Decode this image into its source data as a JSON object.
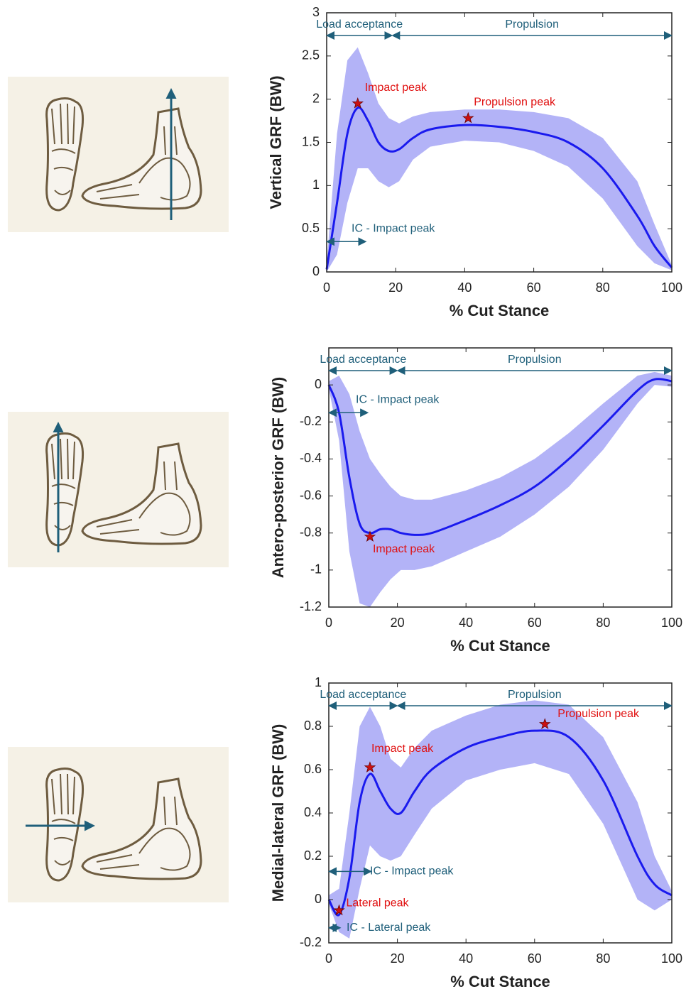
{
  "chart_data": [
    {
      "type": "line",
      "ylabel": "Vertical GRF (BW)",
      "xlabel": "% Cut Stance",
      "x": [
        0,
        3,
        6,
        9,
        12,
        15,
        18,
        21,
        25,
        30,
        40,
        50,
        60,
        70,
        80,
        90,
        95,
        100
      ],
      "values": [
        0.03,
        0.8,
        1.6,
        1.9,
        1.75,
        1.5,
        1.4,
        1.42,
        1.55,
        1.65,
        1.7,
        1.68,
        1.62,
        1.5,
        1.2,
        0.65,
        0.3,
        0.05
      ],
      "upper": [
        0.1,
        1.6,
        2.45,
        2.6,
        2.3,
        1.95,
        1.78,
        1.72,
        1.8,
        1.85,
        1.88,
        1.88,
        1.85,
        1.78,
        1.55,
        1.05,
        0.55,
        0.08
      ],
      "lower": [
        0,
        0.2,
        0.8,
        1.2,
        1.2,
        1.05,
        0.98,
        1.05,
        1.3,
        1.45,
        1.52,
        1.5,
        1.4,
        1.22,
        0.85,
        0.3,
        0.1,
        0.02
      ],
      "color": "#1a1aee",
      "band_color": "#b3b3f7",
      "xlim": [
        0,
        100
      ],
      "xticks": [
        0,
        20,
        40,
        60,
        80,
        100
      ],
      "ylim": [
        0,
        3
      ],
      "yticks": [
        0,
        0.5,
        1,
        1.5,
        2,
        2.5,
        3
      ],
      "phases": [
        {
          "label": "Load acceptance",
          "x": [
            0,
            19
          ]
        },
        {
          "label": "Propulsion",
          "x": [
            19,
            100
          ]
        }
      ],
      "spans": [
        {
          "label": "IC - Impact peak",
          "x": [
            0,
            11
          ]
        }
      ],
      "peaks": [
        {
          "label": "Impact peak",
          "x": 9,
          "y": 1.95
        },
        {
          "label": "Propulsion peak",
          "x": 41,
          "y": 1.78
        }
      ]
    },
    {
      "type": "line",
      "ylabel": "Antero-posterior GRF (BW)",
      "xlabel": "% Cut Stance",
      "x": [
        0,
        3,
        6,
        9,
        12,
        15,
        18,
        21,
        25,
        30,
        40,
        50,
        60,
        70,
        80,
        90,
        95,
        100
      ],
      "values": [
        0,
        -0.15,
        -0.5,
        -0.75,
        -0.8,
        -0.78,
        -0.78,
        -0.8,
        -0.81,
        -0.8,
        -0.73,
        -0.65,
        -0.55,
        -0.4,
        -0.22,
        -0.03,
        0.03,
        0.02
      ],
      "upper": [
        0.02,
        0.05,
        -0.05,
        -0.25,
        -0.4,
        -0.48,
        -0.55,
        -0.6,
        -0.62,
        -0.62,
        -0.57,
        -0.5,
        -0.4,
        -0.26,
        -0.1,
        0.05,
        0.07,
        0.05
      ],
      "lower": [
        -0.02,
        -0.3,
        -0.9,
        -1.18,
        -1.2,
        -1.12,
        -1.05,
        -1,
        -1,
        -0.98,
        -0.9,
        -0.82,
        -0.7,
        -0.55,
        -0.35,
        -0.1,
        0,
        -0.01
      ],
      "color": "#1a1aee",
      "band_color": "#b3b3f7",
      "xlim": [
        0,
        100
      ],
      "xticks": [
        0,
        20,
        40,
        60,
        80,
        100
      ],
      "ylim": [
        -1.2,
        0.2
      ],
      "yticks": [
        -1.2,
        -1,
        -0.8,
        -0.6,
        -0.4,
        -0.2,
        0
      ],
      "phases": [
        {
          "label": "Load acceptance",
          "x": [
            0,
            20
          ]
        },
        {
          "label": "Propulsion",
          "x": [
            20,
            100
          ]
        }
      ],
      "spans": [
        {
          "label": "IC - Impact peak",
          "x": [
            0,
            11
          ]
        }
      ],
      "peaks": [
        {
          "label": "Impact peak",
          "x": 12,
          "y": -0.82
        }
      ]
    },
    {
      "type": "line",
      "ylabel": "Medial-lateral GRF (BW)",
      "xlabel": "% Cut Stance",
      "x": [
        0,
        3,
        6,
        9,
        12,
        15,
        18,
        21,
        25,
        30,
        40,
        50,
        60,
        70,
        80,
        90,
        95,
        100
      ],
      "values": [
        0,
        -0.07,
        0.1,
        0.45,
        0.58,
        0.5,
        0.42,
        0.4,
        0.5,
        0.6,
        0.7,
        0.75,
        0.78,
        0.75,
        0.55,
        0.2,
        0.07,
        0.02
      ],
      "upper": [
        0.02,
        0.05,
        0.4,
        0.8,
        0.89,
        0.8,
        0.65,
        0.61,
        0.7,
        0.78,
        0.85,
        0.9,
        0.92,
        0.9,
        0.75,
        0.45,
        0.2,
        0.04
      ],
      "lower": [
        -0.02,
        -0.15,
        -0.18,
        0.05,
        0.25,
        0.2,
        0.18,
        0.2,
        0.3,
        0.42,
        0.55,
        0.6,
        0.63,
        0.58,
        0.35,
        0,
        -0.05,
        0
      ],
      "color": "#1a1aee",
      "band_color": "#b3b3f7",
      "xlim": [
        0,
        100
      ],
      "xticks": [
        0,
        20,
        40,
        60,
        80,
        100
      ],
      "ylim": [
        -0.2,
        1
      ],
      "yticks": [
        -0.2,
        0,
        0.2,
        0.4,
        0.6,
        0.8,
        1
      ],
      "phases": [
        {
          "label": "Load acceptance",
          "x": [
            0,
            20
          ]
        },
        {
          "label": "Propulsion",
          "x": [
            20,
            100
          ]
        }
      ],
      "spans": [
        {
          "label": "IC - Impact peak",
          "x": [
            0,
            12
          ]
        },
        {
          "label": "IC - Lateral peak",
          "x": [
            0,
            3
          ]
        }
      ],
      "peaks": [
        {
          "label": "Impact peak",
          "x": 12,
          "y": 0.61
        },
        {
          "label": "Propulsion peak",
          "x": 63,
          "y": 0.81
        },
        {
          "label": "Lateral peak",
          "x": 3,
          "y": -0.05
        }
      ]
    }
  ]
}
